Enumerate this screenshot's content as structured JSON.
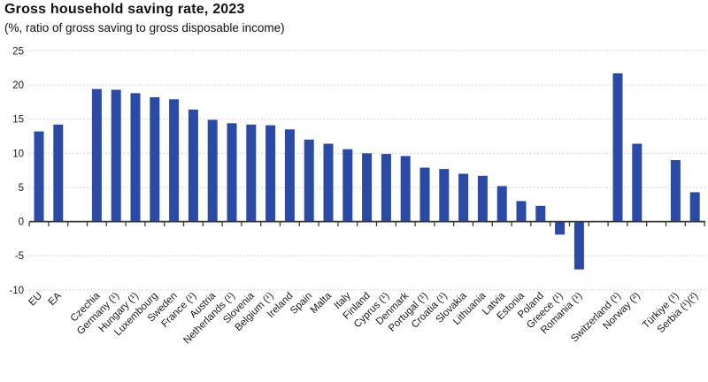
{
  "header": {
    "title": "Gross household saving rate, 2023",
    "subtitle": "(%, ratio of gross saving to gross disposable income)"
  },
  "colors": {
    "bar": "#2b4aa5",
    "axis": "#3a3a3a",
    "grid": "#c3c3c3",
    "text": "#1a1a1a",
    "background": "#ffffff"
  },
  "chart_data": {
    "type": "bar",
    "title": "Gross household saving rate, 2023",
    "subtitle": "(%, ratio of gross saving to gross disposable income)",
    "xlabel": "",
    "ylabel": "",
    "ylim": [
      -10,
      25
    ],
    "yticks": [
      25,
      20,
      15,
      10,
      5,
      0,
      -5,
      -10
    ],
    "grid": "horizontal-dotted",
    "legend": "none",
    "bar_color": "#2b4aa5",
    "categories": [
      "EU",
      "EA",
      "Czechia",
      "Germany (¹)",
      "Hungary (¹)",
      "Luxembourg",
      "Sweden",
      "France (¹)",
      "Austria",
      "Netherlands (¹)",
      "Slovenia",
      "Belgium (¹)",
      "Ireland",
      "Spain",
      "Malta",
      "Italy",
      "Finland",
      "Cyprus (¹)",
      "Denmark",
      "Portugal (¹)",
      "Croatia (¹)",
      "Slovakia",
      "Lithuania",
      "Latvia",
      "Estonia",
      "Poland",
      "Greece (¹)",
      "Romania (¹)",
      "Switzerland (¹)",
      "Norway (²)",
      "Türkiye (¹)",
      "Serbia (¹)(²)"
    ],
    "values": [
      13.2,
      14.2,
      19.4,
      19.3,
      18.8,
      18.2,
      17.9,
      16.4,
      14.9,
      14.4,
      14.2,
      14.1,
      13.5,
      12.0,
      11.4,
      10.6,
      10.0,
      9.9,
      9.6,
      7.9,
      7.7,
      7.0,
      6.7,
      5.2,
      3.0,
      2.3,
      -1.9,
      -7.0,
      21.7,
      11.4,
      9.0,
      4.3
    ],
    "gaps_after": [
      1,
      27,
      29
    ]
  }
}
